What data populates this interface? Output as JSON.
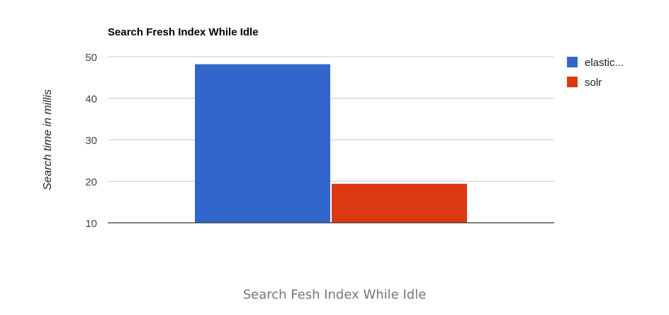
{
  "chart_data": {
    "type": "bar",
    "title": "Search Fresh Index While Idle",
    "xlabel": "",
    "ylabel": "Search time in millis",
    "categories": [
      ""
    ],
    "series": [
      {
        "name": "elastic...",
        "values": [
          48.2
        ],
        "color": "#3366cc"
      },
      {
        "name": "solr",
        "values": [
          19.4
        ],
        "color": "#dc3912"
      }
    ],
    "ylim": [
      10,
      50
    ],
    "yticks": [
      "10",
      "20",
      "30",
      "40",
      "50"
    ],
    "grid": true,
    "legend": "right"
  },
  "caption": "Search Fesh Index While Idle"
}
